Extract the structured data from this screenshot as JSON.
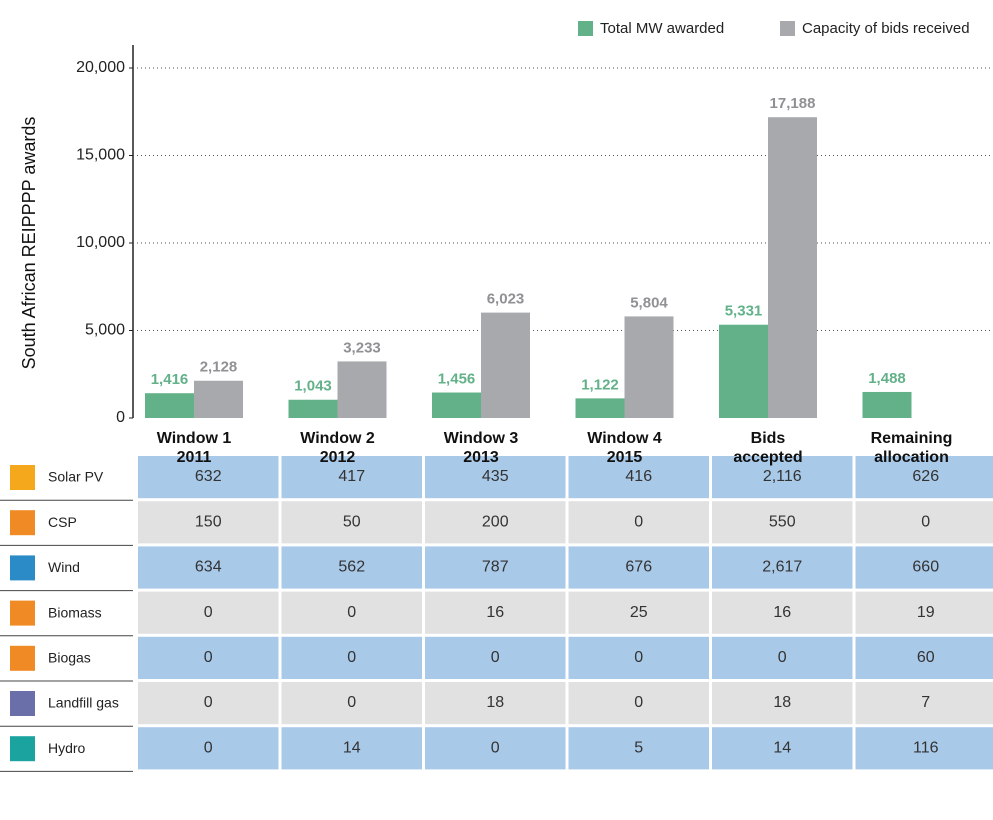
{
  "chart_data": {
    "type": "bar",
    "y_label": "South African REIPPPP awards",
    "categories": [
      "Window 1\n2011",
      "Window 2\n2012",
      "Window 3\n2013",
      "Window 4\n2015",
      "Bids\naccepted",
      "Remaining\nallocation"
    ],
    "series": [
      {
        "name": "Total MW awarded",
        "color": "#63b189",
        "label_color": "#63b189",
        "values": [
          1416,
          1043,
          1456,
          1122,
          5331,
          1488
        ],
        "value_labels": [
          "1,416",
          "1,043",
          "1,456",
          "1,122",
          "5,331",
          "1,488"
        ]
      },
      {
        "name": "Capacity of bids received",
        "color": "#a7a9ac",
        "label_color": "#8f9194",
        "values": [
          2128,
          3233,
          6023,
          5804,
          17188,
          null
        ],
        "value_labels": [
          "2,128",
          "3,233",
          "6,023",
          "5,804",
          "17,188",
          null
        ]
      }
    ],
    "ylim": [
      0,
      20000
    ],
    "yticks": [
      0,
      {
        "value": 5000,
        "label": "5,000"
      },
      {
        "value": 10000,
        "label": "10,000"
      },
      {
        "value": 15000,
        "label": "15,000"
      },
      {
        "value": 20000,
        "label": "20,000"
      }
    ],
    "grid": true,
    "legend": "top-right"
  },
  "table": {
    "rows": [
      {
        "label": "Solar PV",
        "cells": [
          "632",
          "417",
          "435",
          "416",
          "2,116",
          "626"
        ]
      },
      {
        "label": "CSP",
        "cells": [
          "150",
          "50",
          "200",
          "0",
          "550",
          "0"
        ]
      },
      {
        "label": "Wind",
        "cells": [
          "634",
          "562",
          "787",
          "676",
          "2,617",
          "660"
        ]
      },
      {
        "label": "Biomass",
        "cells": [
          "0",
          "0",
          "16",
          "25",
          "16",
          "19"
        ]
      },
      {
        "label": "Biogas",
        "cells": [
          "0",
          "0",
          "0",
          "0",
          "0",
          "60"
        ]
      },
      {
        "label": "Landfill gas",
        "cells": [
          "0",
          "0",
          "18",
          "0",
          "18",
          "7"
        ]
      },
      {
        "label": "Hydro",
        "cells": [
          "0",
          "14",
          "0",
          "5",
          "14",
          "116"
        ]
      }
    ]
  }
}
